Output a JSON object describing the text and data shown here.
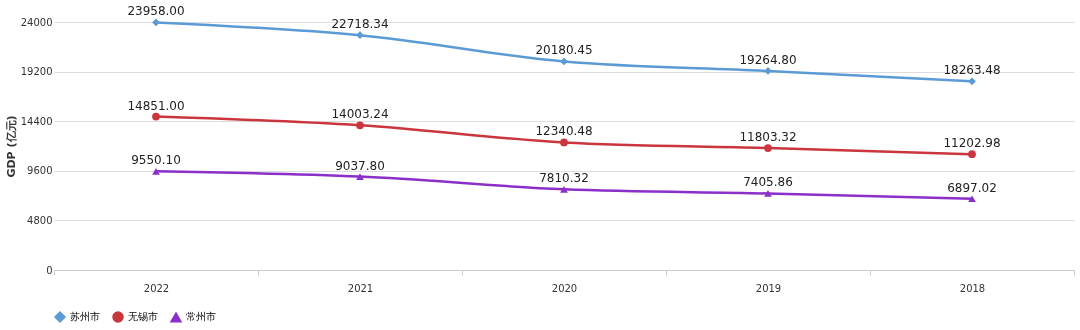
{
  "chart_data": {
    "type": "line",
    "ylabel": "GDP (亿元)",
    "categories": [
      "2022",
      "2021",
      "2020",
      "2019",
      "2018"
    ],
    "series": [
      {
        "name": "苏州市",
        "color": "#5b9bd5",
        "marker": "diamond",
        "values": [
          23958.0,
          22718.34,
          20180.45,
          19264.8,
          18263.48
        ],
        "value_labels": [
          "23958.00",
          "22718.34",
          "20180.45",
          "19264.80",
          "18263.48"
        ]
      },
      {
        "name": "无锡市",
        "color": "#c9363e",
        "marker": "circle",
        "values": [
          14851.0,
          14003.24,
          12340.48,
          11803.32,
          11202.98
        ],
        "value_labels": [
          "14851.00",
          "14003.24",
          "12340.48",
          "11803.32",
          "11202.98"
        ]
      },
      {
        "name": "常州市",
        "color": "#8b2fc9",
        "marker": "triangle",
        "values": [
          9550.1,
          9037.8,
          7810.32,
          7405.86,
          6897.02
        ],
        "value_labels": [
          "9550.10",
          "9037.80",
          "7810.32",
          "7405.86",
          "6897.02"
        ]
      }
    ],
    "ylim": [
      0,
      24000
    ],
    "yticks": [
      0,
      4800,
      9600,
      14400,
      19200,
      24000
    ],
    "grid": "y",
    "legend": "bottom",
    "line_style": "solid"
  }
}
